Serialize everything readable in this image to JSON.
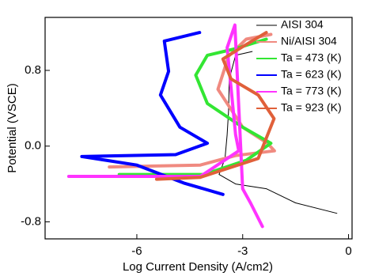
{
  "chart_data": {
    "type": "line",
    "xlabel": "Log Current Density (A/cm2)",
    "ylabel": "Potential (VSCE)",
    "xlim": [
      -8.6,
      0.1
    ],
    "ylim": [
      -0.98,
      1.36
    ],
    "xticks": [
      -6,
      -3,
      0
    ],
    "yticks": [
      -0.8,
      {
        "value": 0,
        "label": "0.0"
      },
      0.8
    ],
    "legend": "upper right",
    "series": [
      {
        "name": "AISI 304",
        "color": "#000000",
        "x": [
          -0.33,
          -1.5,
          -2.33,
          -3.2,
          -3.67,
          -3.5,
          -3.44,
          -3.4,
          -3.38,
          -3.2,
          -2.73
        ],
        "values": [
          -0.71,
          -0.6,
          -0.45,
          -0.4,
          -0.3,
          -0.13,
          0.12,
          0.37,
          0.71,
          0.96,
          1.0
        ]
      },
      {
        "name": "Ni/AISI 304",
        "color": "#f08a80",
        "x": [
          -6.78,
          -5.5,
          -4.2,
          -3.2,
          -2.1,
          -2.3,
          -3.0,
          -3.7,
          -3.4,
          -2.9,
          -2.2
        ],
        "values": [
          -0.22,
          -0.21,
          -0.2,
          -0.1,
          -0.05,
          0.03,
          0.2,
          0.6,
          0.95,
          1.13,
          1.18
        ]
      },
      {
        "name": "Ta = 473 (K)",
        "color": "#33e633",
        "x": [
          -6.5,
          -5.0,
          -4.1,
          -2.9,
          -2.2,
          -3.0,
          -4.0,
          -4.33,
          -4.0,
          -3.2,
          -2.33
        ],
        "values": [
          -0.3,
          -0.3,
          -0.3,
          -0.15,
          0.03,
          0.2,
          0.45,
          0.75,
          0.96,
          1.03,
          1.13
        ]
      },
      {
        "name": "Ta = 623 (K)",
        "color": "#0000ff",
        "x": [
          -4.22,
          -5.22,
          -5.1,
          -5.33,
          -4.78,
          -4.0,
          -4.9,
          -7.56,
          -6.0,
          -4.67,
          -3.56
        ],
        "values": [
          1.2,
          1.11,
          0.79,
          0.54,
          0.2,
          0.03,
          -0.09,
          -0.11,
          -0.2,
          -0.39,
          -0.51
        ]
      },
      {
        "name": "Ta = 773 (K)",
        "color": "#ff33ff",
        "x": [
          -7.93,
          -5.5,
          -4.2,
          -3.11,
          -3.2,
          -3.33,
          -3.44,
          -3.22,
          -3.0,
          -2.78,
          -2.44
        ],
        "values": [
          -0.32,
          -0.32,
          -0.32,
          -0.05,
          0.12,
          0.62,
          1.04,
          1.28,
          -0.45,
          -0.6,
          -0.85
        ]
      },
      {
        "name": "Ta = 923 (K)",
        "color": "#e0603a",
        "x": [
          -5.44,
          -4.2,
          -2.56,
          -2.11,
          -2.56,
          -3.33,
          -3.56,
          -3.0,
          -2.33
        ],
        "values": [
          -0.35,
          -0.33,
          -0.13,
          0.29,
          0.54,
          0.71,
          0.92,
          1.05,
          1.2
        ]
      },
      {
        "name": "",
        "color": "#e0603a",
        "x": [],
        "values": []
      }
    ]
  }
}
